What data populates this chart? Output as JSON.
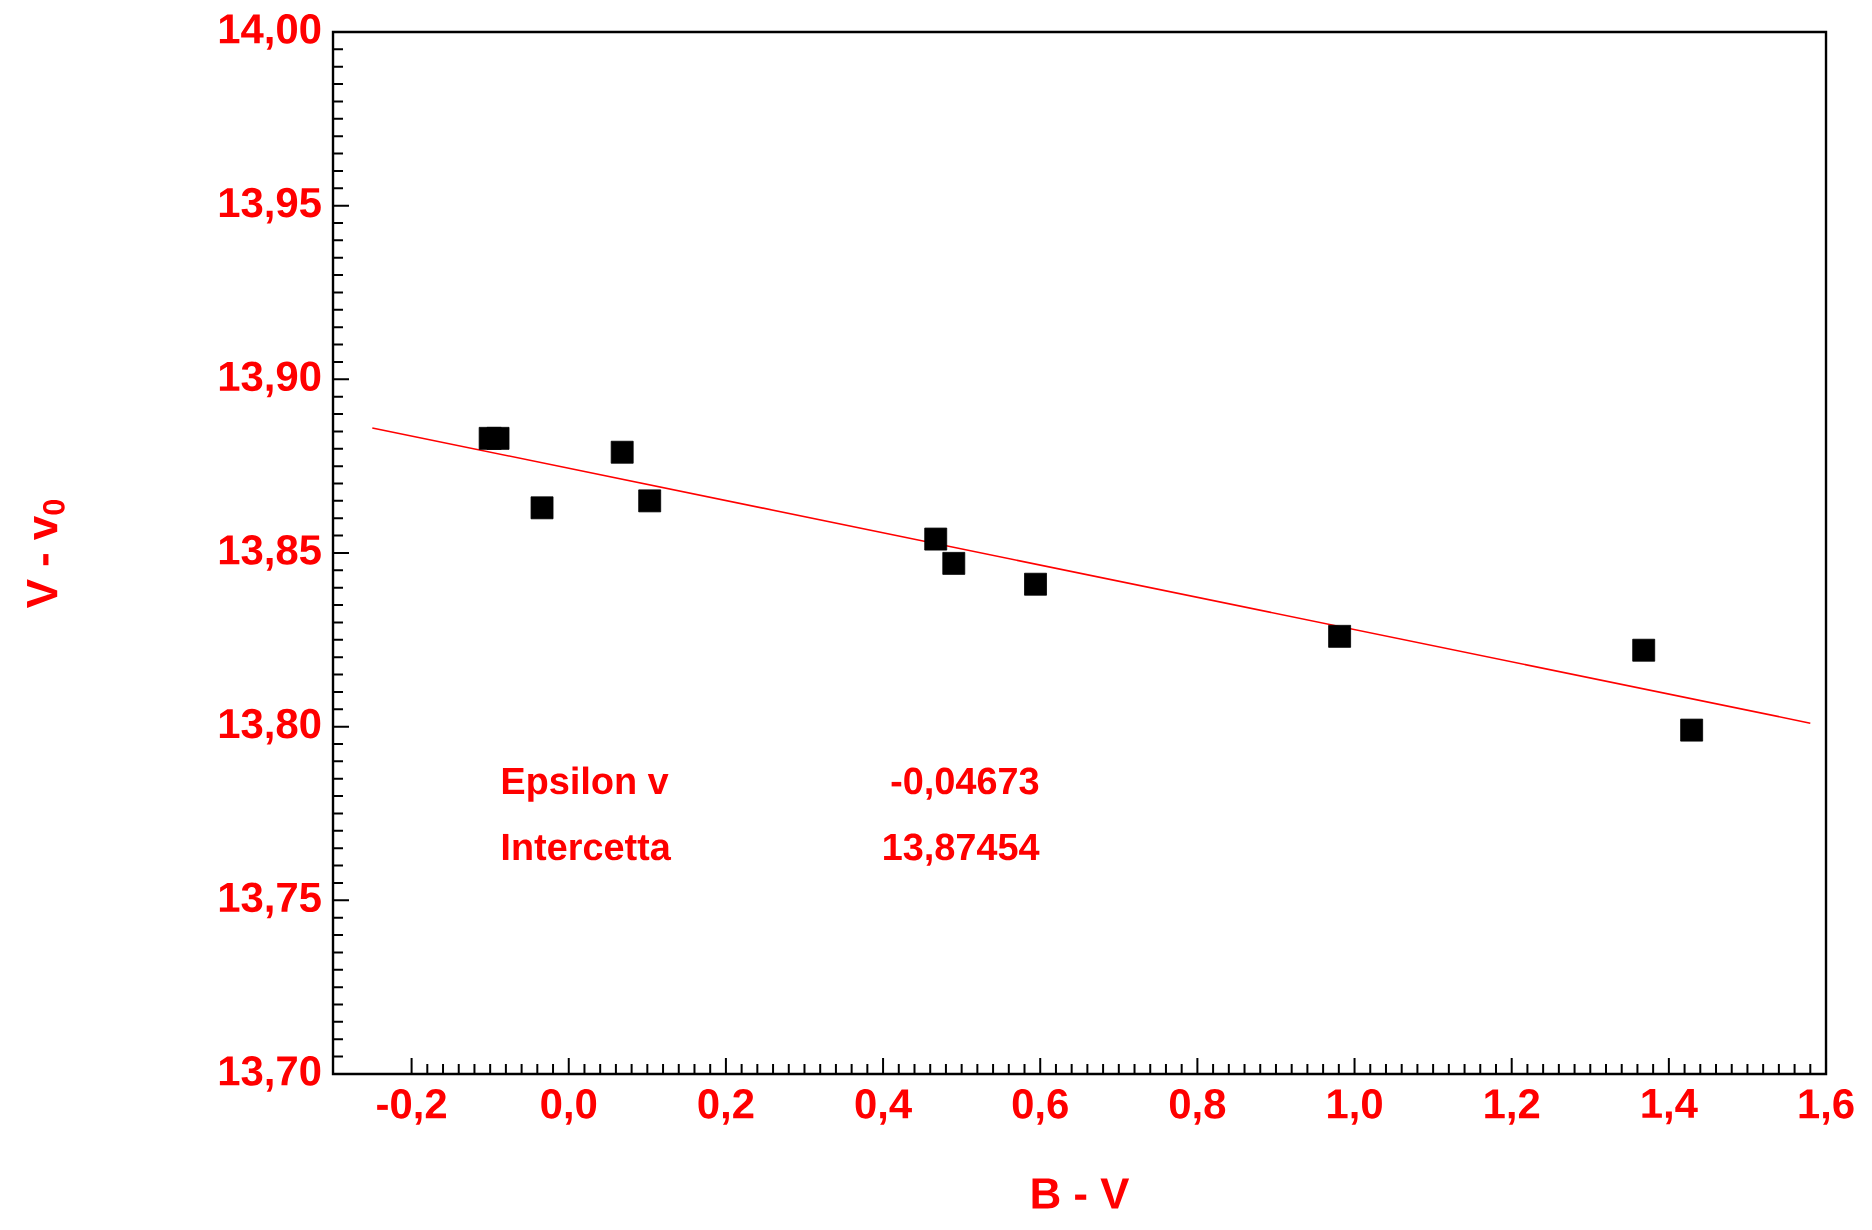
{
  "chart_data": {
    "type": "scatter",
    "xlabel": "B - V",
    "ylabel": "V - v$_{0}$",
    "xlim": [
      -0.3,
      1.6
    ],
    "ylim": [
      13.7,
      14.0
    ],
    "xticks": [
      {
        "value": -0.2,
        "label": "-0,2"
      },
      {
        "value": 0.0,
        "label": "0,0"
      },
      {
        "value": 0.2,
        "label": "0,2"
      },
      {
        "value": 0.4,
        "label": "0,4"
      },
      {
        "value": 0.6,
        "label": "0,6"
      },
      {
        "value": 0.8,
        "label": "0,8"
      },
      {
        "value": 1.0,
        "label": "1,0"
      },
      {
        "value": 1.2,
        "label": "1,2"
      },
      {
        "value": 1.4,
        "label": "1,4"
      },
      {
        "value": 1.6,
        "label": "1,6"
      }
    ],
    "yticks": [
      {
        "value": 13.7,
        "label": "13,70"
      },
      {
        "value": 13.75,
        "label": "13,75"
      },
      {
        "value": 13.8,
        "label": "13,80"
      },
      {
        "value": 13.85,
        "label": "13,85"
      },
      {
        "value": 13.9,
        "label": "13,90"
      },
      {
        "value": 13.95,
        "label": "13,95"
      },
      {
        "value": 14.0,
        "label": "14,00"
      }
    ],
    "series": [
      {
        "marker": "square",
        "color": "#000000",
        "x": [
          -0.1,
          -0.09,
          -0.034,
          0.068,
          0.103,
          0.467,
          0.49,
          0.594,
          0.981,
          1.368,
          1.429
        ],
        "values": [
          13.883,
          13.883,
          13.863,
          13.879,
          13.865,
          13.854,
          13.847,
          13.841,
          13.826,
          13.822,
          13.799
        ]
      },
      {
        "type": "line",
        "marker": "none",
        "line_style": "solid",
        "color": "#ff0000",
        "x": [
          -0.25,
          1.58
        ],
        "values": [
          13.886,
          13.801
        ]
      }
    ],
    "annotations": [
      "Epsilon v",
      "-0,04673",
      "Intercetta",
      "13,87454"
    ]
  }
}
